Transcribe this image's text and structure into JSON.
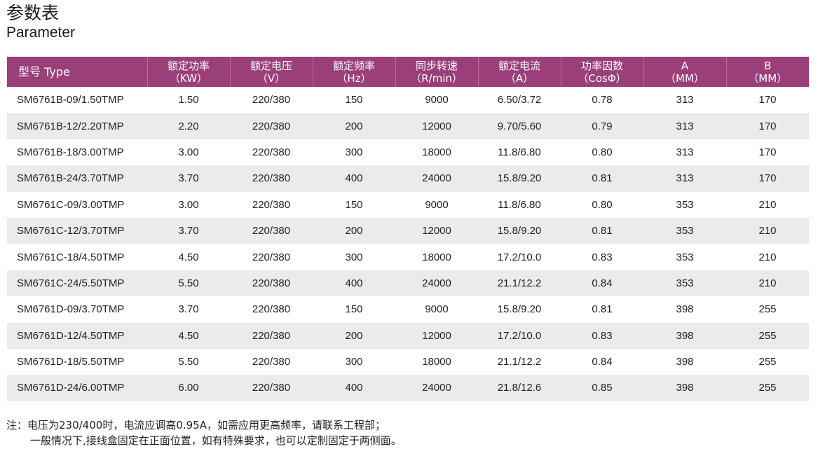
{
  "title_cn": "参数表",
  "title_en": "Parameter",
  "table": {
    "headers": [
      {
        "label": "型号 Type",
        "unit": ""
      },
      {
        "label": "额定功率",
        "unit": "（KW）"
      },
      {
        "label": "额定电压",
        "unit": "（V）"
      },
      {
        "label": "额定频率",
        "unit": "（Hz）"
      },
      {
        "label": "同步转速",
        "unit": "（R/min）"
      },
      {
        "label": "额定电流",
        "unit": "（A）"
      },
      {
        "label": "功率因数",
        "unit": "（CosΦ）"
      },
      {
        "label": "A",
        "unit": "（MM）"
      },
      {
        "label": "B",
        "unit": "（MM）"
      }
    ],
    "rows": [
      [
        "SM6761B-09/1.50TMP",
        "1.50",
        "220/380",
        "150",
        "9000",
        "6.50/3.72",
        "0.78",
        "313",
        "170"
      ],
      [
        "SM6761B-12/2.20TMP",
        "2.20",
        "220/380",
        "200",
        "12000",
        "9.70/5.60",
        "0.79",
        "313",
        "170"
      ],
      [
        "SM6761B-18/3.00TMP",
        "3.00",
        "220/380",
        "300",
        "18000",
        "11.8/6.80",
        "0.80",
        "313",
        "170"
      ],
      [
        "SM6761B-24/3.70TMP",
        "3.70",
        "220/380",
        "400",
        "24000",
        "15.8/9.20",
        "0.81",
        "313",
        "170"
      ],
      [
        "SM6761C-09/3.00TMP",
        "3.00",
        "220/380",
        "150",
        "9000",
        "11.8/6.80",
        "0.80",
        "353",
        "210"
      ],
      [
        "SM6761C-12/3.70TMP",
        "3.70",
        "220/380",
        "200",
        "12000",
        "15.8/9.20",
        "0.81",
        "353",
        "210"
      ],
      [
        "SM6761C-18/4.50TMP",
        "4.50",
        "220/380",
        "300",
        "18000",
        "17.2/10.0",
        "0.83",
        "353",
        "210"
      ],
      [
        "SM6761C-24/5.50TMP",
        "5.50",
        "220/380",
        "400",
        "24000",
        "21.1/12.2",
        "0.84",
        "353",
        "210"
      ],
      [
        "SM6761D-09/3.70TMP",
        "3.70",
        "220/380",
        "150",
        "9000",
        "15.8/9.20",
        "0.81",
        "398",
        "255"
      ],
      [
        "SM6761D-12/4.50TMP",
        "4.50",
        "220/380",
        "200",
        "12000",
        "17.2/10.0",
        "0.83",
        "398",
        "255"
      ],
      [
        "SM6761D-18/5.50TMP",
        "5.50",
        "220/380",
        "300",
        "18000",
        "21.1/12.2",
        "0.84",
        "398",
        "255"
      ],
      [
        "SM6761D-24/6.00TMP",
        "6.00",
        "220/380",
        "400",
        "24000",
        "21.8/12.6",
        "0.85",
        "398",
        "255"
      ]
    ]
  },
  "notes": {
    "line1": "注：电压为230/400时，电流应调高0.95A，如需应用更高频率，请联系工程部；",
    "line2": "一般情况下,接线盒固定在正面位置，如有特殊要求，也可以定制固定于两侧面。"
  },
  "colors": {
    "header_bg": "#9b3f7a",
    "header_text": "#ffffff",
    "row_stripe": "#ebebeb"
  }
}
